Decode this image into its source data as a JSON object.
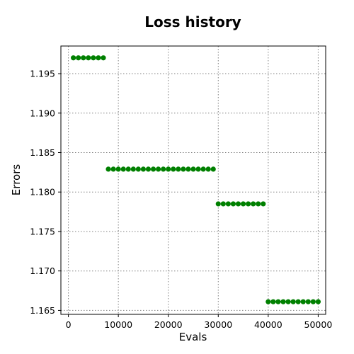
{
  "chart_data": {
    "type": "scatter",
    "title": "Loss history",
    "xlabel": "Evals",
    "ylabel": "Errors",
    "xlim": [
      -1500,
      51500
    ],
    "ylim": [
      1.1645,
      1.1985
    ],
    "x_ticks": [
      0,
      10000,
      20000,
      30000,
      40000,
      50000
    ],
    "x_tick_labels": [
      "0",
      "10000",
      "20000",
      "30000",
      "40000",
      "50000"
    ],
    "y_ticks": [
      1.165,
      1.17,
      1.175,
      1.18,
      1.185,
      1.19,
      1.195
    ],
    "y_tick_labels": [
      "1.165",
      "1.170",
      "1.175",
      "1.180",
      "1.185",
      "1.190",
      "1.195"
    ],
    "grid": true,
    "marker_color": "#008000",
    "series": [
      {
        "x": [
          1000,
          2000,
          3000,
          4000,
          5000,
          6000,
          7000,
          8000,
          9000,
          10000,
          11000,
          12000,
          13000,
          14000,
          15000,
          16000,
          17000,
          18000,
          19000,
          20000,
          21000,
          22000,
          23000,
          24000,
          25000,
          26000,
          27000,
          28000,
          29000,
          30000,
          31000,
          32000,
          33000,
          34000,
          35000,
          36000,
          37000,
          38000,
          39000,
          40000,
          41000,
          42000,
          43000,
          44000,
          45000,
          46000,
          47000,
          48000,
          49000,
          50000
        ],
        "y": [
          1.197,
          1.197,
          1.197,
          1.197,
          1.197,
          1.197,
          1.197,
          1.1829,
          1.1829,
          1.1829,
          1.1829,
          1.1829,
          1.1829,
          1.1829,
          1.1829,
          1.1829,
          1.1829,
          1.1829,
          1.1829,
          1.1829,
          1.1829,
          1.1829,
          1.1829,
          1.1829,
          1.1829,
          1.1829,
          1.1829,
          1.1829,
          1.1829,
          1.1785,
          1.1785,
          1.1785,
          1.1785,
          1.1785,
          1.1785,
          1.1785,
          1.1785,
          1.1785,
          1.1785,
          1.1661,
          1.1661,
          1.1661,
          1.1661,
          1.1661,
          1.1661,
          1.1661,
          1.1661,
          1.1661,
          1.1661,
          1.1661
        ]
      }
    ]
  }
}
